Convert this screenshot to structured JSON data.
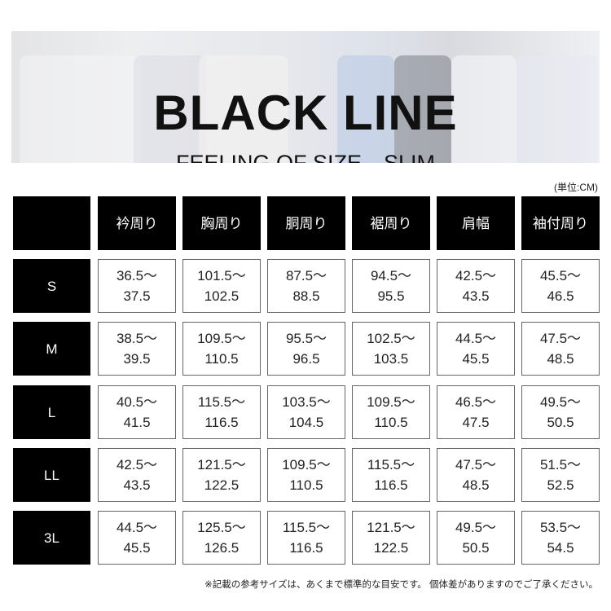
{
  "banner": {
    "title": "BLACK LINE",
    "subtitle": "FEELING OF SIZE　SLIM"
  },
  "unit": "(単位:CM)",
  "columns": [
    "衿周り",
    "胸周り",
    "胴周り",
    "裾周り",
    "肩幅",
    "袖付周り"
  ],
  "rows": [
    {
      "size": "S",
      "values": [
        [
          "36.5～",
          "37.5"
        ],
        [
          "101.5～",
          "102.5"
        ],
        [
          "87.5～",
          "88.5"
        ],
        [
          "94.5～",
          "95.5"
        ],
        [
          "42.5～",
          "43.5"
        ],
        [
          "45.5～",
          "46.5"
        ]
      ]
    },
    {
      "size": "M",
      "values": [
        [
          "38.5～",
          "39.5"
        ],
        [
          "109.5～",
          "110.5"
        ],
        [
          "95.5～",
          "96.5"
        ],
        [
          "102.5～",
          "103.5"
        ],
        [
          "44.5～",
          "45.5"
        ],
        [
          "47.5～",
          "48.5"
        ]
      ]
    },
    {
      "size": "L",
      "values": [
        [
          "40.5～",
          "41.5"
        ],
        [
          "115.5～",
          "116.5"
        ],
        [
          "103.5～",
          "104.5"
        ],
        [
          "109.5～",
          "110.5"
        ],
        [
          "46.5～",
          "47.5"
        ],
        [
          "49.5～",
          "50.5"
        ]
      ]
    },
    {
      "size": "LL",
      "values": [
        [
          "42.5～",
          "43.5"
        ],
        [
          "121.5～",
          "122.5"
        ],
        [
          "109.5～",
          "110.5"
        ],
        [
          "115.5～",
          "116.5"
        ],
        [
          "47.5～",
          "48.5"
        ],
        [
          "51.5～",
          "52.5"
        ]
      ]
    },
    {
      "size": "3L",
      "values": [
        [
          "44.5～",
          "45.5"
        ],
        [
          "125.5～",
          "126.5"
        ],
        [
          "115.5～",
          "116.5"
        ],
        [
          "121.5～",
          "122.5"
        ],
        [
          "49.5～",
          "50.5"
        ],
        [
          "53.5～",
          "54.5"
        ]
      ]
    }
  ],
  "note": "※記載の参考サイズは、あくまで標準的な目安です。 個体差がありますのでご了承ください。"
}
